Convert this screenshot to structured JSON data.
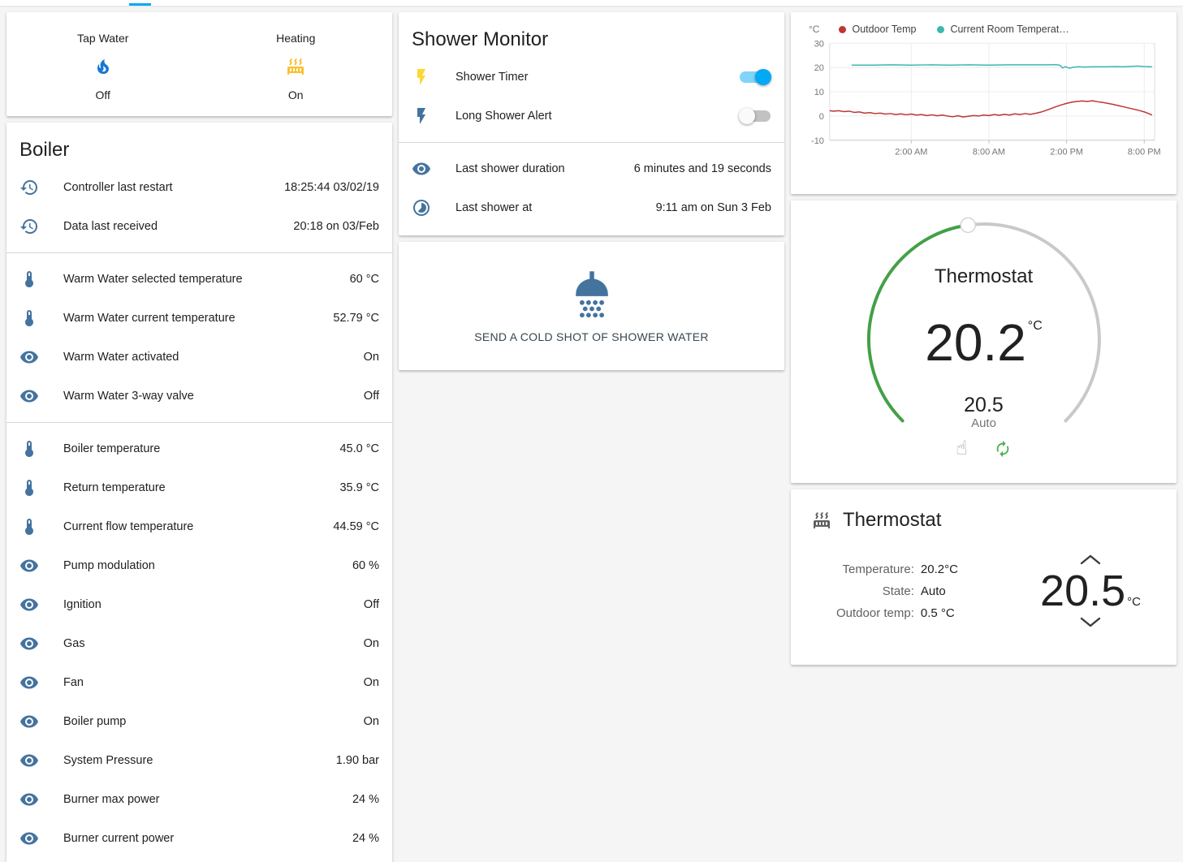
{
  "colors": {
    "blue": "#44739e",
    "gray": "#616161",
    "yellow": "#fdd835",
    "flame_blue": "#1976d2",
    "heating_yellow": "#fbc02d",
    "accent": "#03a9f4",
    "dial_green": "#43a047",
    "dial_gray": "#c9c9c9",
    "hand_gray": "#9e9e9e",
    "autorenew_green": "#4caf50"
  },
  "glance": {
    "items": [
      {
        "label": "Tap Water",
        "icon": "fire",
        "color": "flame_blue",
        "state": "Off"
      },
      {
        "label": "Heating",
        "icon": "radiator",
        "color": "heating_yellow",
        "state": "On"
      }
    ]
  },
  "boiler": {
    "title": "Boiler",
    "groups": [
      {
        "rows": [
          {
            "icon": "history",
            "color": "blue",
            "label": "Controller last restart",
            "value": "18:25:44 03/02/19"
          },
          {
            "icon": "history",
            "color": "blue",
            "label": "Data last received",
            "value": "20:18 on 03/Feb"
          }
        ]
      },
      {
        "rows": [
          {
            "icon": "thermometer",
            "color": "blue",
            "label": "Warm Water selected temperature",
            "value": "60 °C"
          },
          {
            "icon": "thermometer",
            "color": "blue",
            "label": "Warm Water current temperature",
            "value": "52.79 °C"
          },
          {
            "icon": "eye",
            "color": "blue",
            "label": "Warm Water activated",
            "value": "On"
          },
          {
            "icon": "eye",
            "color": "blue",
            "label": "Warm Water 3-way valve",
            "value": "Off"
          }
        ]
      },
      {
        "rows": [
          {
            "icon": "thermometer",
            "color": "blue",
            "label": "Boiler temperature",
            "value": "45.0 °C"
          },
          {
            "icon": "thermometer",
            "color": "blue",
            "label": "Return temperature",
            "value": "35.9 °C"
          },
          {
            "icon": "thermometer",
            "color": "blue",
            "label": "Current flow temperature",
            "value": "44.59 °C"
          },
          {
            "icon": "eye",
            "color": "blue",
            "label": "Pump modulation",
            "value": "60 %"
          },
          {
            "icon": "eye",
            "color": "blue",
            "label": "Ignition",
            "value": "Off"
          },
          {
            "icon": "eye",
            "color": "blue",
            "label": "Gas",
            "value": "On"
          },
          {
            "icon": "eye",
            "color": "blue",
            "label": "Fan",
            "value": "On"
          },
          {
            "icon": "eye",
            "color": "blue",
            "label": "Boiler pump",
            "value": "On"
          },
          {
            "icon": "eye",
            "color": "blue",
            "label": "System Pressure",
            "value": "1.90 bar"
          },
          {
            "icon": "eye",
            "color": "blue",
            "label": "Burner max power",
            "value": "24 %"
          },
          {
            "icon": "eye",
            "color": "blue",
            "label": "Burner current power",
            "value": "24 %"
          }
        ]
      }
    ]
  },
  "shower": {
    "title": "Shower Monitor",
    "toggle_rows": [
      {
        "icon": "flash",
        "color": "yellow",
        "label": "Shower Timer",
        "state": "on"
      },
      {
        "icon": "flash",
        "color": "blue",
        "label": "Long Shower Alert",
        "state": "off"
      }
    ],
    "info_rows": [
      {
        "icon": "eye",
        "color": "blue",
        "label": "Last shower duration",
        "value": "6 minutes and 19 seconds"
      },
      {
        "icon": "timelapse",
        "color": "blue",
        "label": "Last shower at",
        "value": "9:11 am on Sun 3 Feb"
      }
    ],
    "cold_shot_label": "SEND A COLD SHOT OF SHOWER WATER"
  },
  "chart_data": {
    "type": "line",
    "ylabel": "°C",
    "xlim": [
      -4.3,
      20.8
    ],
    "ylim": [
      -10,
      30
    ],
    "y_ticks": [
      -10,
      0,
      10,
      20,
      30
    ],
    "x_ticks": [
      {
        "value": 2,
        "label": "2:00 AM"
      },
      {
        "value": 8,
        "label": "8:00 AM"
      },
      {
        "value": 14,
        "label": "2:00 PM"
      },
      {
        "value": 20,
        "label": "8:00 PM"
      }
    ],
    "legend_position": "top",
    "grid": true,
    "series": [
      {
        "name": "Outdoor Temp",
        "color": "#c03434",
        "points": [
          [
            -4.3,
            2.2
          ],
          [
            -4.0,
            2.0
          ],
          [
            -3.6,
            2.2
          ],
          [
            -3.2,
            1.8
          ],
          [
            -2.8,
            2.0
          ],
          [
            -2.4,
            1.5
          ],
          [
            -2.0,
            1.7
          ],
          [
            -1.6,
            1.2
          ],
          [
            -1.2,
            1.4
          ],
          [
            -0.8,
            1.0
          ],
          [
            -0.4,
            1.2
          ],
          [
            0.0,
            0.8
          ],
          [
            0.4,
            1.0
          ],
          [
            0.8,
            0.6
          ],
          [
            1.2,
            0.9
          ],
          [
            1.6,
            0.5
          ],
          [
            2.0,
            0.8
          ],
          [
            2.4,
            0.4
          ],
          [
            2.8,
            0.6
          ],
          [
            3.2,
            0.2
          ],
          [
            3.6,
            0.5
          ],
          [
            4.0,
            0.1
          ],
          [
            4.4,
            0.4
          ],
          [
            4.8,
            0.0
          ],
          [
            5.2,
            -0.3
          ],
          [
            5.6,
            0.1
          ],
          [
            6.0,
            -0.4
          ],
          [
            6.4,
            -0.1
          ],
          [
            6.8,
            0.2
          ],
          [
            7.2,
            0.0
          ],
          [
            7.6,
            0.4
          ],
          [
            8.0,
            0.2
          ],
          [
            8.4,
            0.6
          ],
          [
            8.8,
            0.3
          ],
          [
            9.2,
            0.7
          ],
          [
            9.6,
            0.4
          ],
          [
            10.0,
            0.9
          ],
          [
            10.4,
            0.6
          ],
          [
            10.8,
            1.0
          ],
          [
            11.2,
            0.7
          ],
          [
            11.6,
            1.1
          ],
          [
            12.0,
            1.6
          ],
          [
            12.4,
            2.3
          ],
          [
            12.8,
            3.1
          ],
          [
            13.2,
            3.9
          ],
          [
            13.6,
            4.6
          ],
          [
            14.0,
            5.2
          ],
          [
            14.4,
            5.7
          ],
          [
            14.8,
            6.0
          ],
          [
            15.2,
            6.2
          ],
          [
            15.6,
            6.0
          ],
          [
            16.0,
            6.3
          ],
          [
            16.4,
            5.9
          ],
          [
            16.8,
            5.6
          ],
          [
            17.2,
            5.2
          ],
          [
            17.6,
            4.8
          ],
          [
            18.0,
            4.3
          ],
          [
            18.4,
            3.8
          ],
          [
            18.8,
            3.3
          ],
          [
            19.2,
            2.8
          ],
          [
            19.6,
            2.3
          ],
          [
            20.0,
            1.7
          ],
          [
            20.3,
            1.1
          ],
          [
            20.6,
            0.4
          ]
        ]
      },
      {
        "name": "Current Room Temperat…",
        "color": "#3cb8b0",
        "points": [
          [
            -2.6,
            21.0
          ],
          [
            -1.0,
            21.0
          ],
          [
            0.5,
            21.1
          ],
          [
            2.0,
            21.0
          ],
          [
            3.5,
            21.1
          ],
          [
            5.0,
            21.0
          ],
          [
            6.5,
            21.1
          ],
          [
            8.0,
            21.0
          ],
          [
            9.5,
            21.1
          ],
          [
            11.0,
            21.1
          ],
          [
            12.5,
            21.1
          ],
          [
            13.2,
            21.2
          ],
          [
            13.5,
            20.9
          ],
          [
            13.7,
            19.8
          ],
          [
            13.9,
            20.4
          ],
          [
            14.2,
            19.7
          ],
          [
            14.5,
            20.1
          ],
          [
            14.9,
            20.3
          ],
          [
            15.4,
            20.2
          ],
          [
            16.0,
            20.3
          ],
          [
            17.0,
            20.3
          ],
          [
            17.8,
            20.4
          ],
          [
            18.4,
            20.3
          ],
          [
            19.0,
            20.5
          ],
          [
            19.5,
            20.6
          ],
          [
            20.0,
            20.4
          ],
          [
            20.6,
            20.3
          ]
        ]
      }
    ]
  },
  "thermostat_dial": {
    "title": "Thermostat",
    "current": "20.2",
    "unit": "°C",
    "target": "20.5",
    "mode": "Auto",
    "hand_icon": "☝"
  },
  "thermostat_card": {
    "title": "Thermostat",
    "rows": [
      {
        "label": "Temperature:",
        "value": "20.2°C"
      },
      {
        "label": "State:",
        "value": "Auto"
      },
      {
        "label": "Outdoor temp:",
        "value": "0.5 °C"
      }
    ],
    "setpoint": "20.5",
    "unit": "°C"
  }
}
